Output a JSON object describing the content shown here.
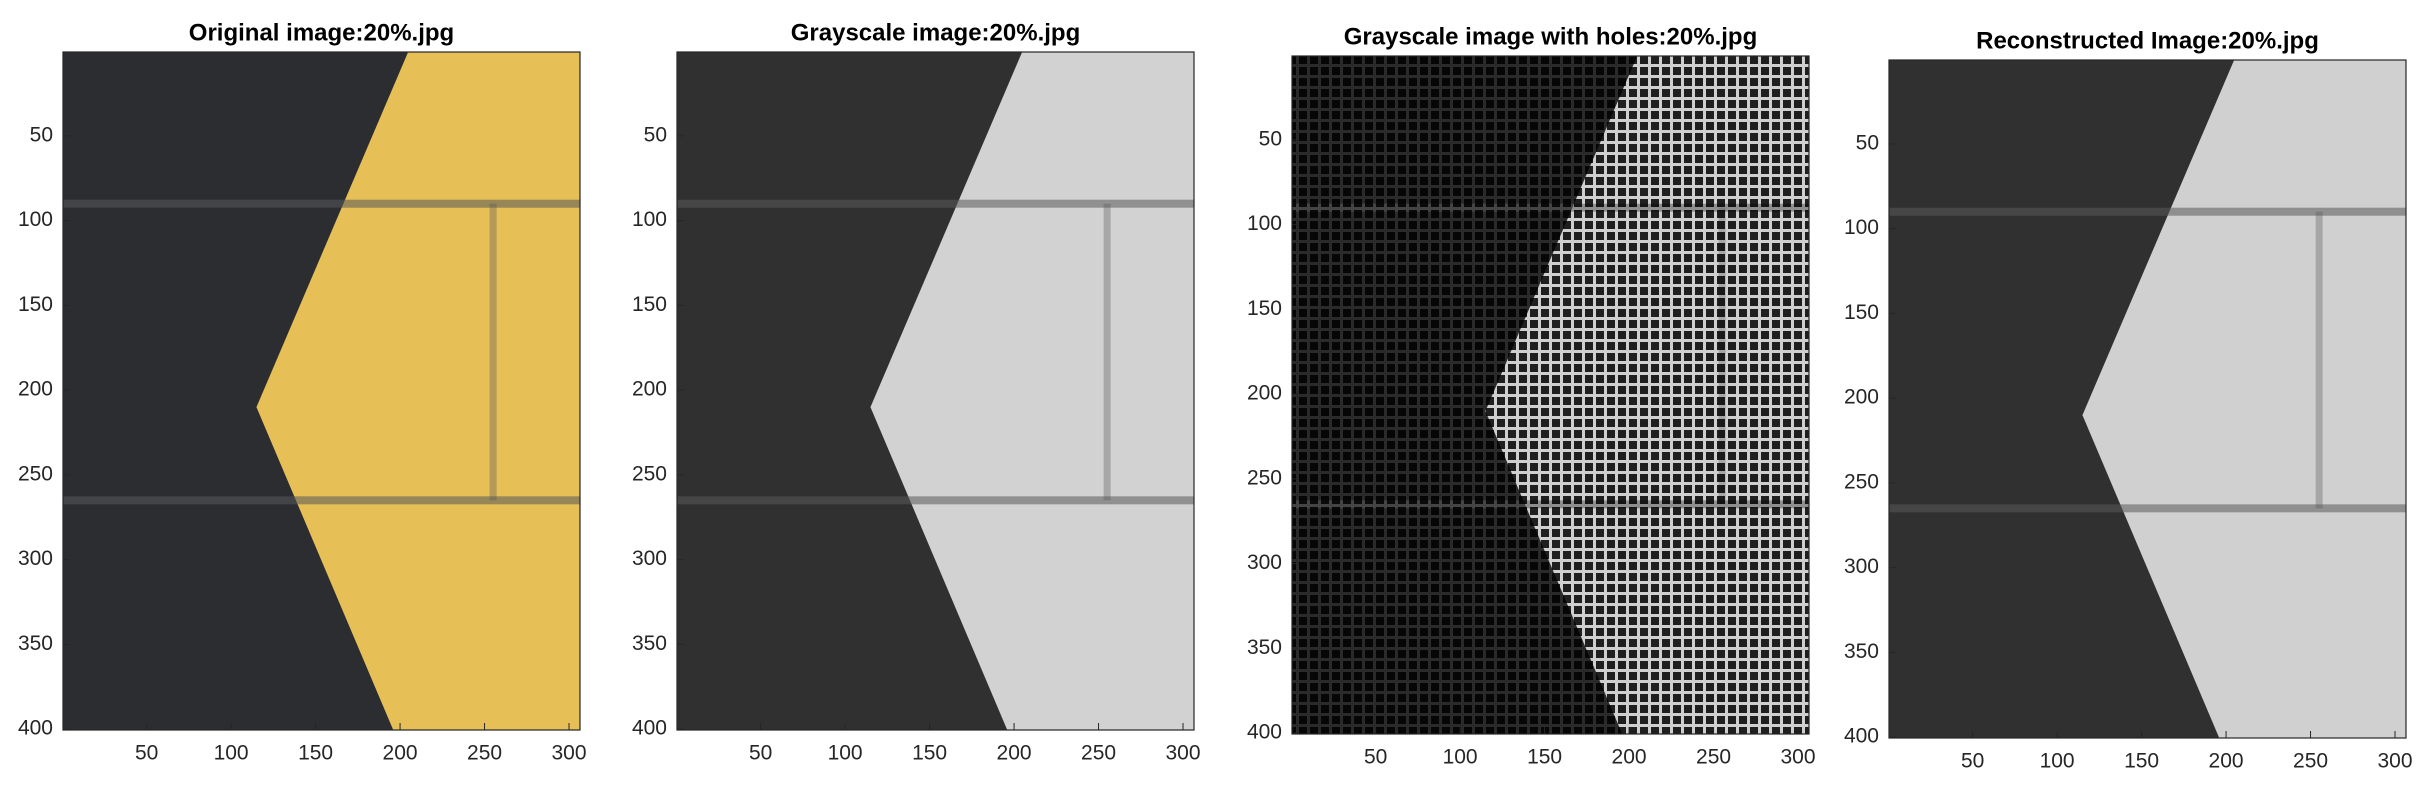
{
  "chart_data": [
    {
      "type": "image",
      "title": "Original image:20%.jpg",
      "xlim": [
        0.5,
        306.5
      ],
      "ylim": [
        0.5,
        400.5
      ],
      "ydir": "reverse",
      "xticks": [
        50,
        100,
        150,
        200,
        250,
        300
      ],
      "yticks": [
        50,
        100,
        150,
        200,
        250,
        300,
        350,
        400
      ]
    },
    {
      "type": "image",
      "title": "Grayscale image:20%.jpg",
      "xlim": [
        0.5,
        306.5
      ],
      "ylim": [
        0.5,
        400.5
      ],
      "ydir": "reverse",
      "xticks": [
        50,
        100,
        150,
        200,
        250,
        300
      ],
      "yticks": [
        50,
        100,
        150,
        200,
        250,
        300,
        350,
        400
      ]
    },
    {
      "type": "image",
      "title": "Grayscale image with holes:20%.jpg",
      "xlim": [
        0.5,
        306.5
      ],
      "ylim": [
        0.5,
        400.5
      ],
      "ydir": "reverse",
      "xticks": [
        50,
        100,
        150,
        200,
        250,
        300
      ],
      "yticks": [
        50,
        100,
        150,
        200,
        250,
        300,
        350,
        400
      ]
    },
    {
      "type": "image",
      "title": "Reconstructed Image:20%.jpg",
      "xlim": [
        0.5,
        306.5
      ],
      "ylim": [
        0.5,
        400.5
      ],
      "ydir": "reverse",
      "xticks": [
        50,
        100,
        150,
        200,
        250,
        300
      ],
      "yticks": [
        50,
        100,
        150,
        200,
        250,
        300,
        350,
        400
      ]
    }
  ]
}
